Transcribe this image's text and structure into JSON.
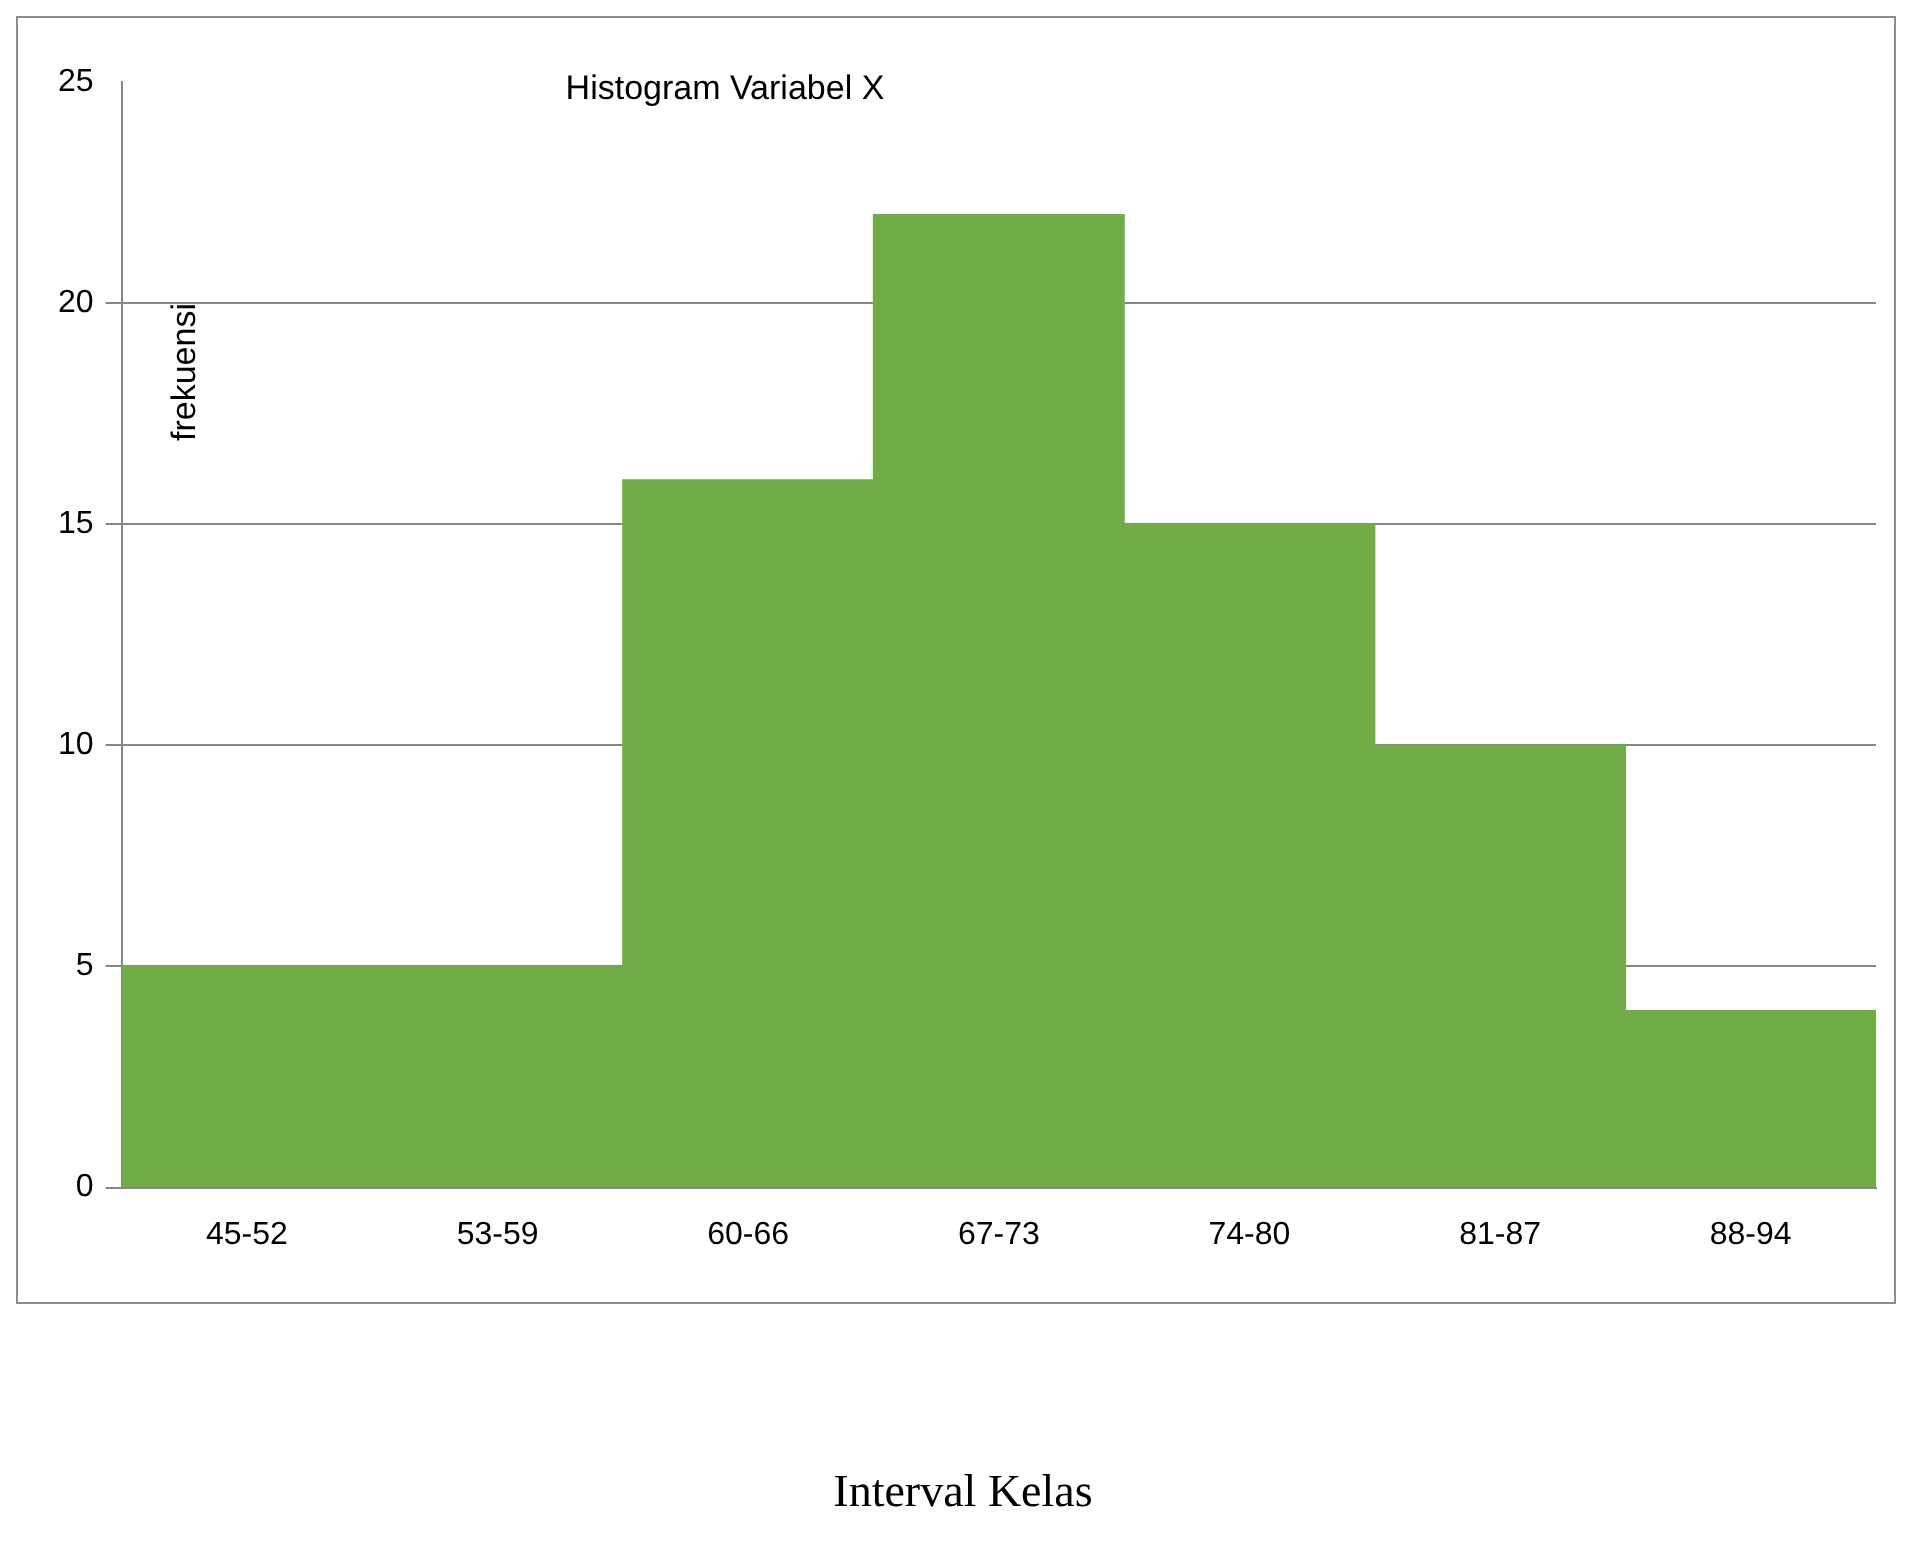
{
  "chart_data": {
    "type": "bar",
    "title": "Histogram Variabel X",
    "xlabel": "Interval Kelas",
    "ylabel": "frekuensi",
    "categories": [
      "45-52",
      "53-59",
      "60-66",
      "67-73",
      "74-80",
      "81-87",
      "88-94"
    ],
    "values": [
      5,
      5,
      16,
      22,
      15,
      10,
      4
    ],
    "color": "#70ad47",
    "ylim": [
      0,
      25
    ],
    "yticks": [
      0,
      5,
      10,
      15,
      20,
      25
    ],
    "grid": "y",
    "legend": false
  }
}
